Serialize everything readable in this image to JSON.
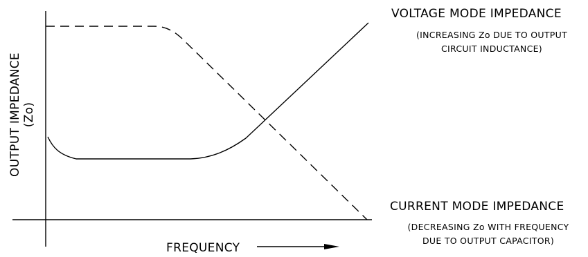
{
  "axes": {
    "x_label": "FREQUENCY",
    "y_label_line1": "OUTPUT IMPEDANCE",
    "y_label_line2": "(Zo)"
  },
  "curves": {
    "voltage_mode": {
      "title": "VOLTAGE MODE IMPEDANCE",
      "note_line1": "(INCREASING Zo DUE TO OUTPUT",
      "note_line2": "CIRCUIT INDUCTANCE)",
      "style": "solid"
    },
    "current_mode": {
      "title": "CURRENT MODE IMPEDANCE",
      "note_line1": "(DECREASING Zo WITH FREQUENCY",
      "note_line2": "DUE TO OUTPUT CAPACITOR)",
      "style": "dashed"
    }
  },
  "colors": {
    "ink": "#000000",
    "background": "#ffffff"
  }
}
